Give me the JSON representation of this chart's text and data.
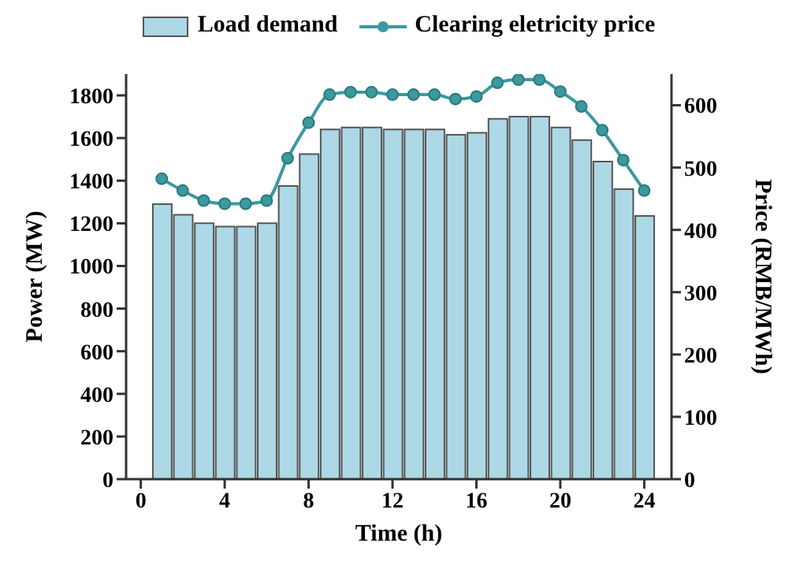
{
  "chart_data": {
    "type": "bar",
    "xlabel": "Time (h)",
    "ylabel": "Power (MW)",
    "y2label": "Price (RMB/MWh)",
    "x": [
      1,
      2,
      3,
      4,
      5,
      6,
      7,
      8,
      9,
      10,
      11,
      12,
      13,
      14,
      15,
      16,
      17,
      18,
      19,
      20,
      21,
      22,
      23,
      24
    ],
    "series": [
      {
        "name": "Load demand",
        "color": "#add8e6",
        "values": [
          1290,
          1240,
          1200,
          1185,
          1185,
          1200,
          1375,
          1525,
          1640,
          1650,
          1650,
          1640,
          1640,
          1640,
          1615,
          1625,
          1690,
          1700,
          1700,
          1650,
          1590,
          1490,
          1360,
          1235
        ]
      },
      {
        "name": "Clearing eletricity price",
        "type": "line",
        "axis": "y2",
        "color": "#3a9a9e",
        "marker": "circle",
        "values": [
          482,
          463,
          447,
          442,
          442,
          447,
          515,
          572,
          617,
          621,
          621,
          617,
          617,
          617,
          610,
          614,
          636,
          641,
          641,
          622,
          598,
          560,
          512,
          463
        ]
      }
    ],
    "xlim": [
      -0.7,
      25.3
    ],
    "xticks": [
      0,
      4,
      8,
      12,
      16,
      20,
      24
    ],
    "ylim": [
      0,
      1900
    ],
    "yticks": [
      0,
      200,
      400,
      600,
      800,
      1000,
      1200,
      1400,
      1600,
      1800
    ],
    "y2lim": [
      0,
      650
    ],
    "y2ticks": [
      0,
      100,
      200,
      300,
      400,
      500,
      600
    ],
    "legend": "top",
    "grid": false
  }
}
